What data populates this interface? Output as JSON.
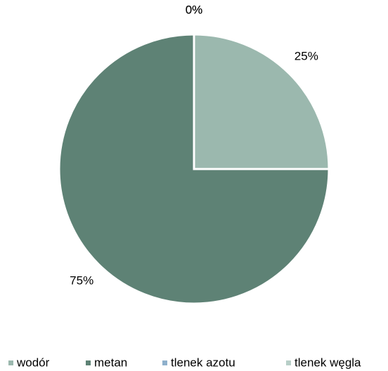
{
  "chart_data": {
    "type": "pie",
    "categories": [
      "wodór",
      "metan",
      "tlenek azotu",
      "tlenek węgla"
    ],
    "values": [
      25,
      75,
      0,
      0
    ],
    "value_labels": [
      "25%",
      "75%",
      "0%",
      "0%"
    ],
    "colors": [
      "#9bb8ae",
      "#5e8275",
      "#8fb0cc",
      "#b8cfc8"
    ],
    "legend": "bottom"
  }
}
